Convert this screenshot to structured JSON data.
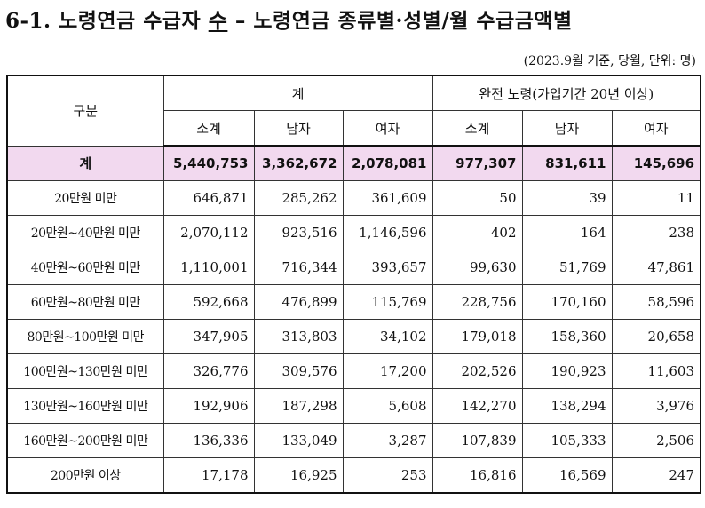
{
  "title": {
    "prefix": "6-1. 노령연금 수급자 ",
    "underlined": "수",
    "suffix": " –   노령연금 종류별·성별/월 수급금액별"
  },
  "note": "(2023.9월 기준, 당월, 단위: 명)",
  "table": {
    "header": {
      "category": "구분",
      "group_total": "계",
      "group_full": "완전 노령(가입기간 20년 이상)",
      "subtotal": "소계",
      "male": "남자",
      "female": "여자"
    },
    "total_row": {
      "label": "계",
      "values": [
        "5,440,753",
        "3,362,672",
        "2,078,081",
        "977,307",
        "831,611",
        "145,696"
      ]
    },
    "rows": [
      {
        "label": "20만원 미만",
        "values": [
          "646,871",
          "285,262",
          "361,609",
          "50",
          "39",
          "11"
        ]
      },
      {
        "label": "20만원~40만원 미만",
        "values": [
          "2,070,112",
          "923,516",
          "1,146,596",
          "402",
          "164",
          "238"
        ]
      },
      {
        "label": "40만원~60만원 미만",
        "values": [
          "1,110,001",
          "716,344",
          "393,657",
          "99,630",
          "51,769",
          "47,861"
        ]
      },
      {
        "label": "60만원~80만원 미만",
        "values": [
          "592,668",
          "476,899",
          "115,769",
          "228,756",
          "170,160",
          "58,596"
        ]
      },
      {
        "label": "80만원~100만원 미만",
        "values": [
          "347,905",
          "313,803",
          "34,102",
          "179,018",
          "158,360",
          "20,658"
        ]
      },
      {
        "label": "100만원~130만원 미만",
        "values": [
          "326,776",
          "309,576",
          "17,200",
          "202,526",
          "190,923",
          "11,603"
        ]
      },
      {
        "label": "130만원~160만원 미만",
        "values": [
          "192,906",
          "187,298",
          "5,608",
          "142,270",
          "138,294",
          "3,976"
        ]
      },
      {
        "label": "160만원~200만원 미만",
        "values": [
          "136,336",
          "133,049",
          "3,287",
          "107,839",
          "105,333",
          "2,506"
        ]
      },
      {
        "label": "200만원 이상",
        "values": [
          "17,178",
          "16,925",
          "253",
          "16,816",
          "16,569",
          "247"
        ]
      }
    ]
  }
}
